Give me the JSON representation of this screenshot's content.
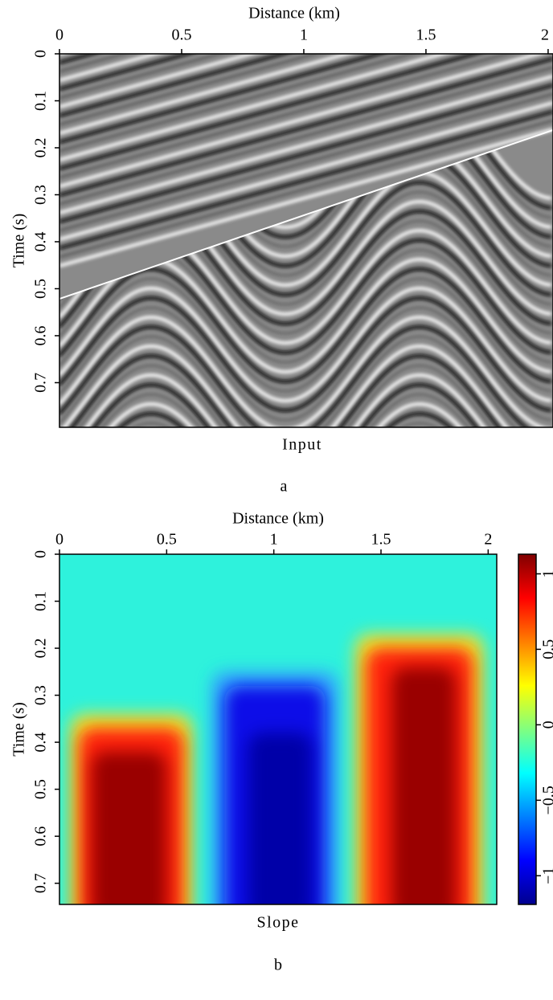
{
  "chart_data": [
    {
      "type": "heatmap",
      "colormap": "gray",
      "xlabel": "Distance (km)",
      "ylabel": "Time (s)",
      "title": "Input",
      "caption": "a",
      "xlim": [
        0,
        2.02
      ],
      "ylim": [
        0,
        0.795
      ],
      "y_inverted": true,
      "xticks": [
        0,
        0.5,
        1,
        1.5,
        2
      ],
      "yticks": [
        0,
        0.1,
        0.2,
        0.3,
        0.4,
        0.5,
        0.6,
        0.7
      ]
    },
    {
      "type": "heatmap",
      "colormap": "jet",
      "xlabel": "Distance (km)",
      "ylabel": "Time (s)",
      "title": "Slope",
      "caption": "b",
      "xlim": [
        0,
        2.04
      ],
      "ylim": [
        0,
        0.745
      ],
      "y_inverted": true,
      "xticks": [
        0,
        0.5,
        1,
        1.5,
        2
      ],
      "yticks": [
        0,
        0.1,
        0.2,
        0.3,
        0.4,
        0.5,
        0.6,
        0.7
      ],
      "colorbar": {
        "lim": [
          -1.19,
          1.13
        ],
        "ticks": [
          {
            "value": -1,
            "label": "−1"
          },
          {
            "value": -0.5,
            "label": "−0.5"
          },
          0,
          0.5,
          1
        ]
      }
    }
  ]
}
